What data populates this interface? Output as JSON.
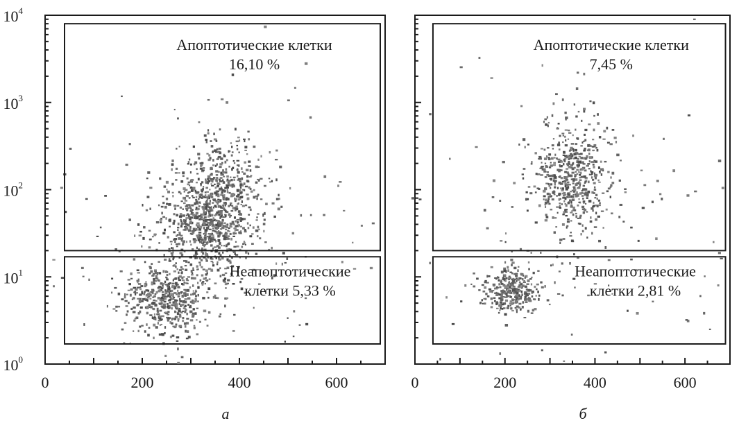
{
  "chart_data": [
    {
      "type": "scatter",
      "panel_label": "а",
      "x_ticks": [
        "0",
        "200",
        "400",
        "600"
      ],
      "x_range": [
        0,
        700
      ],
      "y_scale": "log",
      "y_range": [
        1,
        10000
      ],
      "y_ticks": [
        {
          "base": "10",
          "exp": "0"
        },
        {
          "base": "10",
          "exp": "1"
        },
        {
          "base": "10",
          "exp": "2"
        },
        {
          "base": "10",
          "exp": "3"
        },
        {
          "base": "10",
          "exp": "4"
        }
      ],
      "gates": [
        {
          "name": "Апоптотические клетки",
          "value": "16,10 %",
          "label_lines": [
            "Апоптотические клетки",
            "16,10 %"
          ],
          "x": [
            40,
            690
          ],
          "y": [
            20,
            8000
          ]
        },
        {
          "name": "Неапоптотические клетки",
          "value": "5,33 %",
          "label_lines": [
            "Неапоптотические",
            "клетки 5,33 %"
          ],
          "x": [
            40,
            690
          ],
          "y": [
            1.7,
            17
          ]
        }
      ],
      "populations": [
        {
          "cx": 330,
          "cy": 40,
          "sx": 45,
          "sy": 0.28,
          "n": 650
        },
        {
          "cx": 370,
          "cy": 110,
          "sx": 40,
          "sy": 0.3,
          "n": 320
        },
        {
          "cx": 250,
          "cy": 6,
          "sx": 45,
          "sy": 0.2,
          "n": 480
        },
        {
          "cx": 380,
          "cy": 30,
          "sx": 170,
          "sy": 0.75,
          "n": 200
        }
      ]
    },
    {
      "type": "scatter",
      "panel_label": "б",
      "x_ticks": [
        "0",
        "200",
        "400",
        "600"
      ],
      "x_range": [
        0,
        700
      ],
      "y_scale": "log",
      "y_range": [
        1,
        10000
      ],
      "gates": [
        {
          "name": "Апоптотические клетки",
          "value": "7,45 %",
          "label_lines": [
            "Апоптотические клетки",
            "7,45 %"
          ],
          "x": [
            40,
            690
          ],
          "y": [
            20,
            8000
          ]
        },
        {
          "name": "Неапоптотические клетки",
          "value": "2,81 %",
          "label_lines": [
            "Неапоптотические",
            "клетки 2,81 %"
          ],
          "x": [
            40,
            690
          ],
          "y": [
            1.7,
            17
          ]
        }
      ],
      "populations": [
        {
          "cx": 350,
          "cy": 140,
          "sx": 40,
          "sy": 0.32,
          "n": 520
        },
        {
          "cx": 215,
          "cy": 7,
          "sx": 30,
          "sy": 0.13,
          "n": 300
        },
        {
          "cx": 350,
          "cy": 50,
          "sx": 190,
          "sy": 0.85,
          "n": 150
        }
      ]
    }
  ]
}
